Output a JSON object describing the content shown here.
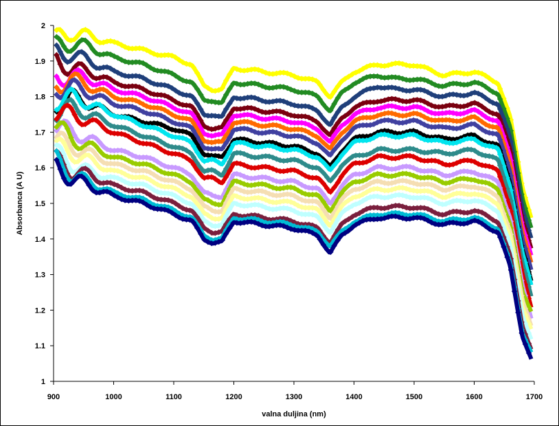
{
  "chart_data": {
    "type": "scatter",
    "title": "",
    "xlabel": "valna duljina (nm)",
    "ylabel": "Absorbanca (A U)",
    "xlim": [
      900,
      1700
    ],
    "ylim": [
      1,
      2
    ],
    "xticks": [
      "900",
      "1000",
      "1100",
      "1200",
      "1300",
      "1400",
      "1500",
      "1600",
      "1700"
    ],
    "yticks": [
      "1",
      "1.1",
      "1.2",
      "1.3",
      "1.4",
      "1.5",
      "1.6",
      "1.7",
      "1.8",
      "1.9",
      "2"
    ],
    "grid": false,
    "legend": "none",
    "x": [
      905,
      930,
      960,
      1000,
      1050,
      1100,
      1130,
      1150,
      1165,
      1180,
      1200,
      1250,
      1300,
      1340,
      1360,
      1380,
      1400,
      1440,
      1470,
      1500,
      1550,
      1600,
      1640,
      1660,
      1680,
      1695
    ],
    "series": [
      {
        "color": "#ffff00",
        "values": [
          1.96,
          1.98,
          1.97,
          1.95,
          1.93,
          1.91,
          1.89,
          1.83,
          1.82,
          1.82,
          1.88,
          1.87,
          1.86,
          1.84,
          1.8,
          1.84,
          1.87,
          1.89,
          1.89,
          1.89,
          1.86,
          1.87,
          1.84,
          1.74,
          1.55,
          1.46
        ]
      },
      {
        "color": "#228b22",
        "values": [
          1.94,
          1.95,
          1.94,
          1.91,
          1.89,
          1.86,
          1.84,
          1.79,
          1.79,
          1.78,
          1.84,
          1.83,
          1.82,
          1.8,
          1.76,
          1.81,
          1.84,
          1.86,
          1.85,
          1.85,
          1.83,
          1.84,
          1.81,
          1.71,
          1.52,
          1.43
        ]
      },
      {
        "color": "#1f3f7a",
        "values": [
          1.92,
          1.92,
          1.9,
          1.87,
          1.85,
          1.82,
          1.8,
          1.75,
          1.75,
          1.74,
          1.8,
          1.79,
          1.78,
          1.76,
          1.72,
          1.77,
          1.8,
          1.83,
          1.82,
          1.82,
          1.8,
          1.81,
          1.78,
          1.68,
          1.49,
          1.4
        ]
      },
      {
        "color": "#7a0010",
        "values": [
          1.9,
          1.88,
          1.87,
          1.84,
          1.82,
          1.79,
          1.77,
          1.72,
          1.71,
          1.71,
          1.77,
          1.76,
          1.75,
          1.73,
          1.69,
          1.74,
          1.77,
          1.79,
          1.79,
          1.79,
          1.77,
          1.78,
          1.75,
          1.65,
          1.46,
          1.37
        ]
      },
      {
        "color": "#ff00ff",
        "values": [
          1.85,
          1.86,
          1.85,
          1.82,
          1.8,
          1.77,
          1.75,
          1.7,
          1.69,
          1.69,
          1.75,
          1.74,
          1.73,
          1.71,
          1.67,
          1.72,
          1.75,
          1.77,
          1.77,
          1.77,
          1.75,
          1.76,
          1.73,
          1.63,
          1.44,
          1.35
        ]
      },
      {
        "color": "#ff6a00",
        "values": [
          1.83,
          1.85,
          1.83,
          1.8,
          1.78,
          1.75,
          1.73,
          1.68,
          1.67,
          1.67,
          1.73,
          1.72,
          1.71,
          1.69,
          1.65,
          1.7,
          1.73,
          1.75,
          1.75,
          1.75,
          1.73,
          1.74,
          1.71,
          1.61,
          1.42,
          1.33
        ]
      },
      {
        "color": "#4040a0",
        "values": [
          1.82,
          1.83,
          1.81,
          1.78,
          1.76,
          1.73,
          1.71,
          1.66,
          1.65,
          1.65,
          1.71,
          1.7,
          1.69,
          1.67,
          1.63,
          1.68,
          1.71,
          1.73,
          1.73,
          1.73,
          1.71,
          1.72,
          1.69,
          1.59,
          1.4,
          1.31
        ]
      },
      {
        "color": "#000000",
        "values": [
          1.78,
          1.8,
          1.78,
          1.75,
          1.73,
          1.71,
          1.69,
          1.64,
          1.63,
          1.63,
          1.68,
          1.67,
          1.66,
          1.64,
          1.6,
          1.65,
          1.68,
          1.7,
          1.7,
          1.7,
          1.68,
          1.69,
          1.66,
          1.56,
          1.37,
          1.28
        ]
      },
      {
        "color": "#00e5ee",
        "values": [
          1.79,
          1.8,
          1.78,
          1.75,
          1.72,
          1.69,
          1.67,
          1.62,
          1.62,
          1.61,
          1.67,
          1.66,
          1.65,
          1.63,
          1.59,
          1.64,
          1.67,
          1.69,
          1.69,
          1.69,
          1.67,
          1.68,
          1.65,
          1.55,
          1.36,
          1.27
        ]
      },
      {
        "color": "#2e8b8b",
        "values": [
          1.76,
          1.77,
          1.75,
          1.72,
          1.69,
          1.66,
          1.64,
          1.59,
          1.59,
          1.58,
          1.64,
          1.63,
          1.62,
          1.6,
          1.56,
          1.61,
          1.63,
          1.65,
          1.65,
          1.65,
          1.64,
          1.65,
          1.62,
          1.52,
          1.33,
          1.24
        ]
      },
      {
        "color": "#dd0000",
        "values": [
          1.76,
          1.75,
          1.73,
          1.7,
          1.67,
          1.64,
          1.62,
          1.57,
          1.57,
          1.56,
          1.61,
          1.6,
          1.59,
          1.57,
          1.53,
          1.58,
          1.61,
          1.63,
          1.63,
          1.63,
          1.61,
          1.62,
          1.59,
          1.49,
          1.3,
          1.21
        ]
      },
      {
        "color": "#c89aff",
        "values": [
          1.72,
          1.7,
          1.68,
          1.65,
          1.63,
          1.6,
          1.58,
          1.53,
          1.52,
          1.52,
          1.58,
          1.57,
          1.56,
          1.54,
          1.5,
          1.55,
          1.58,
          1.6,
          1.6,
          1.6,
          1.58,
          1.59,
          1.56,
          1.46,
          1.27,
          1.18
        ]
      },
      {
        "color": "#99cc00",
        "values": [
          1.72,
          1.68,
          1.66,
          1.63,
          1.61,
          1.58,
          1.56,
          1.51,
          1.5,
          1.5,
          1.56,
          1.55,
          1.54,
          1.52,
          1.48,
          1.53,
          1.56,
          1.58,
          1.58,
          1.58,
          1.56,
          1.57,
          1.54,
          1.44,
          1.25,
          1.2
        ]
      },
      {
        "color": "#f5deb3",
        "values": [
          1.68,
          1.66,
          1.64,
          1.61,
          1.59,
          1.56,
          1.54,
          1.49,
          1.48,
          1.48,
          1.54,
          1.53,
          1.52,
          1.5,
          1.46,
          1.51,
          1.54,
          1.56,
          1.56,
          1.56,
          1.54,
          1.55,
          1.52,
          1.42,
          1.23,
          1.16
        ]
      },
      {
        "color": "#ffff99",
        "values": [
          1.66,
          1.64,
          1.62,
          1.59,
          1.57,
          1.54,
          1.52,
          1.47,
          1.46,
          1.46,
          1.52,
          1.51,
          1.5,
          1.48,
          1.44,
          1.49,
          1.52,
          1.54,
          1.54,
          1.54,
          1.52,
          1.53,
          1.5,
          1.4,
          1.21,
          1.15
        ]
      },
      {
        "color": "#bfffff",
        "values": [
          1.64,
          1.61,
          1.59,
          1.57,
          1.55,
          1.52,
          1.5,
          1.45,
          1.44,
          1.44,
          1.5,
          1.49,
          1.48,
          1.46,
          1.42,
          1.47,
          1.5,
          1.52,
          1.52,
          1.52,
          1.5,
          1.51,
          1.48,
          1.38,
          1.19,
          1.12
        ]
      },
      {
        "color": "#7a1f3d",
        "values": [
          1.62,
          1.59,
          1.58,
          1.55,
          1.53,
          1.5,
          1.48,
          1.43,
          1.42,
          1.42,
          1.47,
          1.46,
          1.45,
          1.43,
          1.39,
          1.44,
          1.47,
          1.49,
          1.49,
          1.49,
          1.47,
          1.48,
          1.45,
          1.35,
          1.16,
          1.09
        ]
      },
      {
        "color": "#00bcd4",
        "values": [
          1.62,
          1.58,
          1.56,
          1.53,
          1.51,
          1.48,
          1.46,
          1.41,
          1.4,
          1.4,
          1.46,
          1.45,
          1.44,
          1.42,
          1.38,
          1.42,
          1.45,
          1.47,
          1.47,
          1.47,
          1.45,
          1.46,
          1.43,
          1.33,
          1.14,
          1.08
        ]
      },
      {
        "color": "#000080",
        "values": [
          1.6,
          1.57,
          1.55,
          1.52,
          1.5,
          1.47,
          1.45,
          1.4,
          1.39,
          1.39,
          1.45,
          1.44,
          1.43,
          1.41,
          1.36,
          1.41,
          1.44,
          1.46,
          1.46,
          1.46,
          1.44,
          1.45,
          1.42,
          1.32,
          1.13,
          1.06
        ]
      }
    ]
  }
}
